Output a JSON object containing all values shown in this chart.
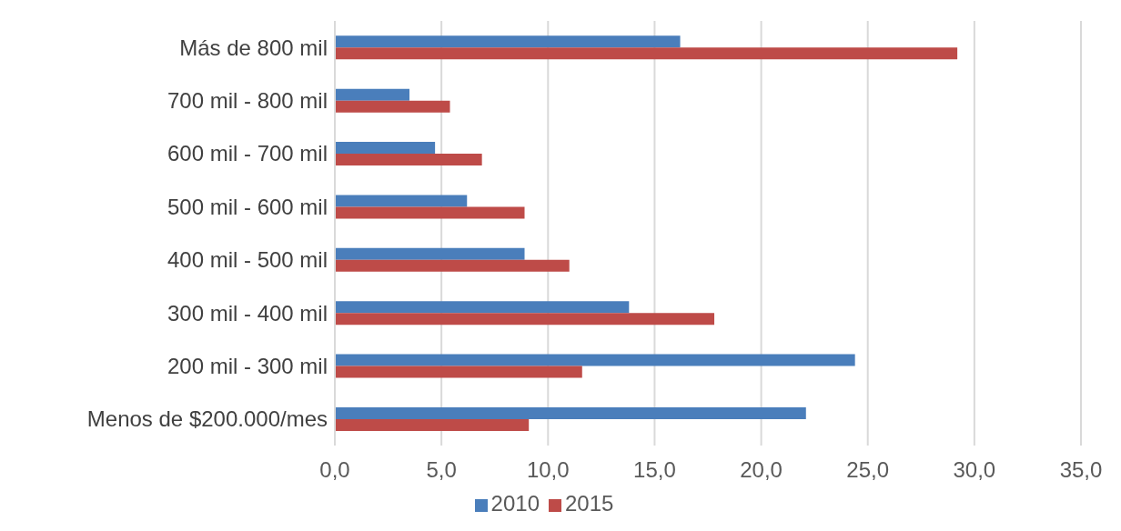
{
  "chart_data": {
    "type": "bar",
    "orientation": "horizontal",
    "categories": [
      "Más de 800 mil",
      "700 mil - 800 mil",
      "600 mil - 700 mil",
      "500 mil - 600 mil",
      "400 mil - 500 mil",
      "300 mil - 400 mil",
      "200 mil - 300 mil",
      "Menos de $200.000/mes"
    ],
    "series": [
      {
        "name": "2010",
        "color": "#4a7ebb",
        "values": [
          16.2,
          3.5,
          4.7,
          6.2,
          8.9,
          13.8,
          24.4,
          22.1
        ]
      },
      {
        "name": "2015",
        "color": "#be4b48",
        "values": [
          29.2,
          5.4,
          6.9,
          8.9,
          11.0,
          17.8,
          11.6,
          9.1
        ]
      }
    ],
    "xlim": [
      0,
      35
    ],
    "xticks": [
      {
        "value": 0,
        "label": "0,0"
      },
      {
        "value": 5,
        "label": "5,0"
      },
      {
        "value": 10,
        "label": "10,0"
      },
      {
        "value": 15,
        "label": "15,0"
      },
      {
        "value": 20,
        "label": "20,0"
      },
      {
        "value": 25,
        "label": "25,0"
      },
      {
        "value": 30,
        "label": "30,0"
      },
      {
        "value": 35,
        "label": "35,0"
      }
    ],
    "grid": "x",
    "legend": "bottom"
  }
}
